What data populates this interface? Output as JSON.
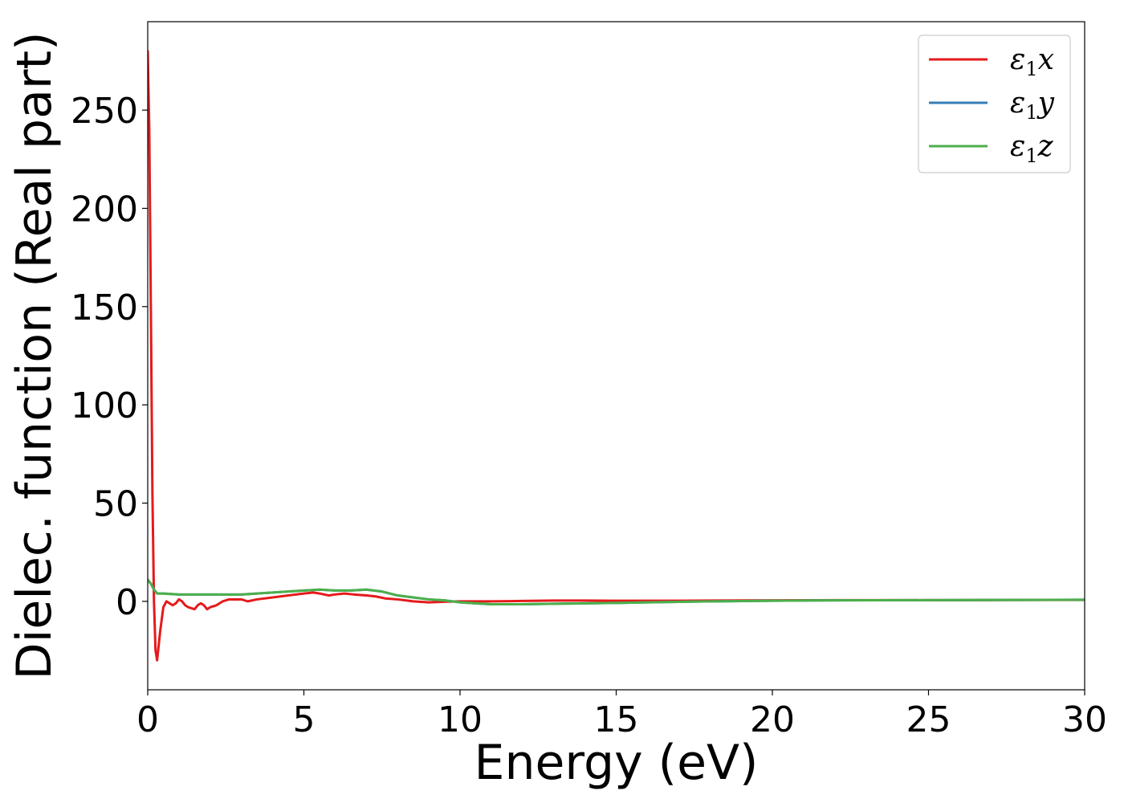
{
  "chart_data": {
    "type": "line",
    "xlabel": "Energy (eV)",
    "ylabel": "Dielec. function (Real part)",
    "xlim": [
      0,
      30
    ],
    "ylim": [
      -45,
      295
    ],
    "xticks": [
      0,
      5,
      10,
      15,
      20,
      25,
      30
    ],
    "xtick_labels": [
      "0",
      "5",
      "10",
      "15",
      "20",
      "25",
      "30"
    ],
    "yticks": [
      0,
      50,
      100,
      150,
      200,
      250
    ],
    "ytick_labels": [
      "0",
      "50",
      "100",
      "150",
      "200",
      "250"
    ],
    "grid": false,
    "legend_position": "top-right",
    "series": [
      {
        "name": "ε1x",
        "label_main": "ε",
        "label_sub": "1",
        "label_var": "x",
        "color": "#e41a1c",
        "x": [
          0.0,
          0.05,
          0.1,
          0.15,
          0.2,
          0.25,
          0.3,
          0.4,
          0.5,
          0.6,
          0.7,
          0.8,
          0.9,
          1.0,
          1.1,
          1.2,
          1.3,
          1.5,
          1.6,
          1.7,
          1.8,
          1.9,
          2.0,
          2.2,
          2.4,
          2.6,
          2.8,
          3.0,
          3.2,
          3.5,
          4.0,
          4.5,
          5.0,
          5.3,
          5.5,
          5.8,
          6.0,
          6.3,
          6.6,
          7.0,
          7.3,
          7.6,
          8.0,
          8.5,
          9.0,
          9.5,
          10.0,
          10.5,
          11.0,
          12.0,
          13.0,
          14.0,
          15.0,
          16.0,
          17.0,
          18.0,
          20.0,
          22.0,
          24.0,
          26.0,
          28.0,
          30.0
        ],
        "y": [
          280,
          240,
          150,
          55,
          0,
          -25,
          -30,
          -15,
          -3,
          0,
          -1,
          -2,
          -1,
          1,
          0,
          -2,
          -3,
          -4,
          -2,
          -1,
          -2,
          -4,
          -3,
          -2,
          0,
          1,
          1,
          1,
          0,
          1,
          2,
          3,
          4,
          4.5,
          4,
          3,
          3.5,
          4,
          3.5,
          3,
          2.5,
          1.5,
          1,
          0,
          -0.5,
          -0.2,
          0,
          0,
          0,
          0.2,
          0.4,
          0.4,
          0.3,
          0.3,
          0.3,
          0.4,
          0.5,
          0.6,
          0.6,
          0.6,
          0.7,
          0.7
        ]
      },
      {
        "name": "ε1y",
        "label_main": "ε",
        "label_sub": "1",
        "label_var": "y",
        "color": "#377eb8",
        "x": [
          0.0,
          0.1,
          0.2,
          0.3,
          0.5,
          1.0,
          1.5,
          2.0,
          2.5,
          3.0,
          3.5,
          4.0,
          4.5,
          5.0,
          5.5,
          6.0,
          6.5,
          7.0,
          7.5,
          8.0,
          8.5,
          9.0,
          9.5,
          10.0,
          10.5,
          11.0,
          12.0,
          13.0,
          14.0,
          15.0,
          16.0,
          18.0,
          20.0,
          22.0,
          25.0,
          28.0,
          30.0
        ],
        "y": [
          11,
          9,
          6,
          4,
          4,
          3.5,
          3.5,
          3.5,
          3.5,
          3.5,
          4,
          4.5,
          5,
          5.5,
          6,
          5.5,
          5.5,
          6,
          5,
          3,
          2,
          1,
          0.5,
          -0.5,
          -1,
          -1.5,
          -1.5,
          -1.2,
          -1,
          -0.8,
          -0.5,
          0,
          0.3,
          0.5,
          0.6,
          0.7,
          0.8
        ]
      },
      {
        "name": "ε1z",
        "label_main": "ε",
        "label_sub": "1",
        "label_var": "z",
        "color": "#4daf4a",
        "x": [
          0.0,
          0.1,
          0.2,
          0.3,
          0.5,
          1.0,
          1.5,
          2.0,
          2.5,
          3.0,
          3.5,
          4.0,
          4.5,
          5.0,
          5.5,
          6.0,
          6.5,
          7.0,
          7.5,
          8.0,
          8.5,
          9.0,
          9.5,
          10.0,
          10.5,
          11.0,
          12.0,
          13.0,
          14.0,
          15.0,
          16.0,
          18.0,
          20.0,
          22.0,
          25.0,
          28.0,
          30.0
        ],
        "y": [
          11,
          9,
          6,
          4,
          4,
          3.5,
          3.5,
          3.5,
          3.5,
          3.5,
          4,
          4.5,
          5,
          5.5,
          6,
          5.5,
          5.5,
          6,
          5,
          3,
          2,
          1,
          0.5,
          -0.5,
          -1,
          -1.5,
          -1.5,
          -1.2,
          -1,
          -0.8,
          -0.5,
          0,
          0.3,
          0.5,
          0.6,
          0.7,
          0.8
        ]
      }
    ]
  }
}
